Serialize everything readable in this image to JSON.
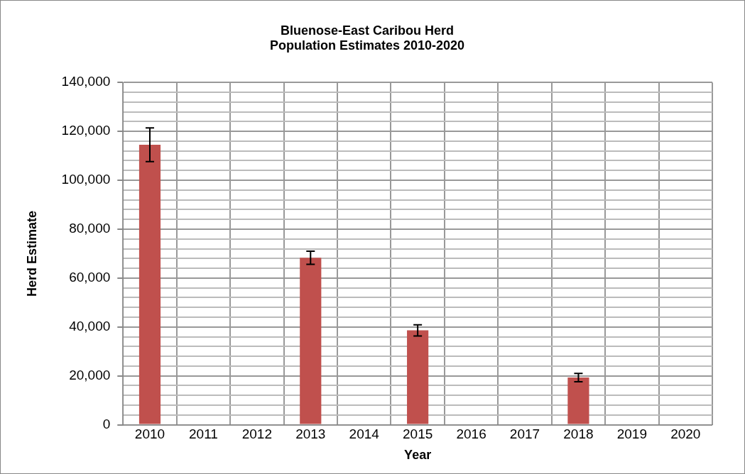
{
  "chart_data": {
    "type": "bar",
    "title": "Bluenose-East Caribou Herd\nPopulation Estimates 2010-2020",
    "xlabel": "Year",
    "ylabel": "Herd Estimate",
    "categories": [
      "2010",
      "2011",
      "2012",
      "2013",
      "2014",
      "2015",
      "2016",
      "2017",
      "2018",
      "2019",
      "2020"
    ],
    "values": [
      114500,
      null,
      null,
      68300,
      null,
      38600,
      null,
      null,
      19300,
      null,
      null
    ],
    "errors": [
      6900,
      null,
      null,
      2700,
      null,
      2300,
      null,
      null,
      1700,
      null,
      null
    ],
    "color": "#c0504d",
    "ylim": [
      0,
      140000
    ],
    "yticks": [
      {
        "value": 0,
        "label": "0"
      },
      {
        "value": 4000,
        "label": null
      },
      {
        "value": 8000,
        "label": null
      },
      {
        "value": 12000,
        "label": null
      },
      {
        "value": 16000,
        "label": null
      },
      {
        "value": 20000,
        "label": "20,000"
      },
      {
        "value": 24000,
        "label": null
      },
      {
        "value": 28000,
        "label": null
      },
      {
        "value": 32000,
        "label": null
      },
      {
        "value": 36000,
        "label": null
      },
      {
        "value": 40000,
        "label": "40,000"
      },
      {
        "value": 44000,
        "label": null
      },
      {
        "value": 48000,
        "label": null
      },
      {
        "value": 52000,
        "label": null
      },
      {
        "value": 56000,
        "label": null
      },
      {
        "value": 60000,
        "label": "60,000"
      },
      {
        "value": 64000,
        "label": null
      },
      {
        "value": 68000,
        "label": null
      },
      {
        "value": 72000,
        "label": null
      },
      {
        "value": 76000,
        "label": null
      },
      {
        "value": 80000,
        "label": "80,000"
      },
      {
        "value": 84000,
        "label": null
      },
      {
        "value": 88000,
        "label": null
      },
      {
        "value": 92000,
        "label": null
      },
      {
        "value": 96000,
        "label": null
      },
      {
        "value": 100000,
        "label": "100,000"
      },
      {
        "value": 104000,
        "label": null
      },
      {
        "value": 108000,
        "label": null
      },
      {
        "value": 112000,
        "label": null
      },
      {
        "value": 116000,
        "label": null
      },
      {
        "value": 120000,
        "label": "120,000"
      },
      {
        "value": 124000,
        "label": null
      },
      {
        "value": 128000,
        "label": null
      },
      {
        "value": 132000,
        "label": null
      },
      {
        "value": 136000,
        "label": null
      },
      {
        "value": 140000,
        "label": "140,000"
      }
    ],
    "grid": true,
    "legend": false
  }
}
